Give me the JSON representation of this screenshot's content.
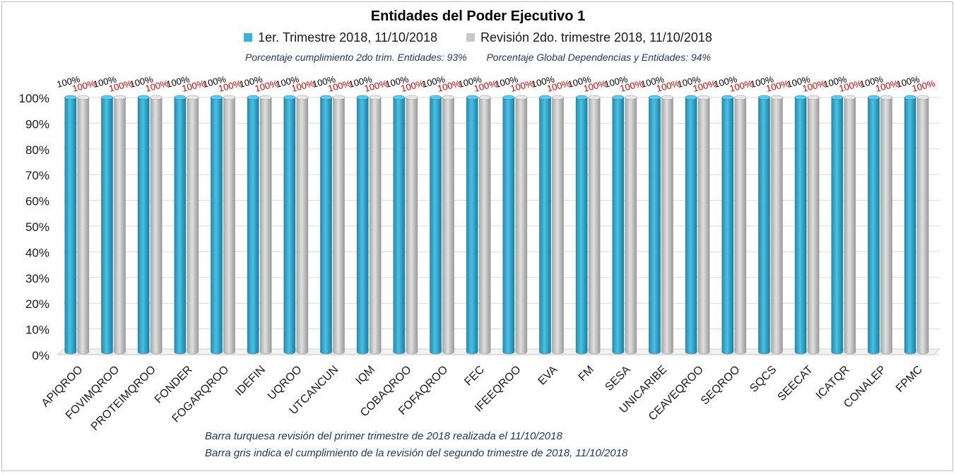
{
  "chart_data": {
    "type": "bar",
    "title": "Entidades del Poder Ejecutivo 1",
    "subtitle_left": "Porcentaje cumplimiento 2do trim. Entidades: 93%",
    "subtitle_right": "Porcentaje Global Dependencias y Entidades: 94%",
    "categories": [
      "APIQROO",
      "FOVIMQROO",
      "PROTEIMQROO",
      "FONDER",
      "FOGARQROO",
      "IDEFIN",
      "UQROO",
      "UTCANCUN",
      "IQM",
      "COBAQROO",
      "FOFAQROO",
      "FEC",
      "IFEEQROO",
      "EVA",
      "FM",
      "SESA",
      "UNICARIBE",
      "CEAVEQROO",
      "SEQROO",
      "SQCS",
      "SEECAT",
      "ICATQR",
      "CONALEP",
      "FPMC"
    ],
    "series": [
      {
        "name": "1er. Trimestre 2018, 11/10/2018",
        "color": "#3bb1d3",
        "label_color": "#000000",
        "values": [
          100,
          100,
          100,
          100,
          100,
          100,
          100,
          100,
          100,
          100,
          100,
          100,
          100,
          100,
          100,
          100,
          100,
          100,
          100,
          100,
          100,
          100,
          100,
          100
        ],
        "labels": [
          "100%",
          "100%",
          "100%",
          "100%",
          "100%",
          "100%",
          "100%",
          "100%",
          "100%",
          "100%",
          "100%",
          "100%",
          "100%",
          "100%",
          "100%",
          "100%",
          "100%",
          "100%",
          "100%",
          "100%",
          "100%",
          "100%",
          "100%",
          "100%"
        ]
      },
      {
        "name": "Revisión 2do. trimestre 2018, 11/10/2018",
        "color": "#c8c8c8",
        "label_color": "#e00000",
        "values": [
          100,
          100,
          100,
          100,
          100,
          100,
          100,
          100,
          100,
          100,
          100,
          100,
          100,
          100,
          100,
          100,
          100,
          100,
          100,
          100,
          100,
          100,
          100,
          100
        ],
        "labels": [
          "100%",
          "100%",
          "100%",
          "100%",
          "100%",
          "100%",
          "100%",
          "100%",
          "100%",
          "100%",
          "100%",
          "100%",
          "100%",
          "100%",
          "100%",
          "100%",
          "100%",
          "100%",
          "100%",
          "100%",
          "100%",
          "100%",
          "100%",
          "100%"
        ]
      }
    ],
    "ylim": [
      0,
      100
    ],
    "yticks": [
      "0%",
      "10%",
      "20%",
      "30%",
      "40%",
      "50%",
      "60%",
      "70%",
      "80%",
      "90%",
      "100%"
    ],
    "grid": true,
    "legend_position": "top"
  },
  "notes": {
    "line1": "Barra turquesa revisión del primer trimestre de 2018 realizada el 11/10/2018",
    "line2": "Barra gris indica el cumplimiento de la revisión del segundo trimestre de 2018, 11/10/2018"
  }
}
